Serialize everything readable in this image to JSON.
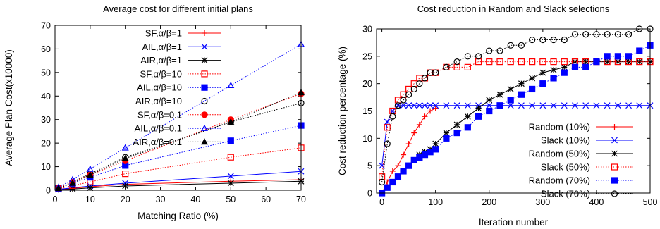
{
  "chart_data": [
    {
      "type": "line",
      "title": "Average cost for different initial plans",
      "xlabel": "Matching Ratio (%)",
      "ylabel": "Average Plan Cost(x10000)",
      "xlim": [
        0,
        70
      ],
      "ylim": [
        0,
        70
      ],
      "xticks": [
        "0",
        "10",
        "20",
        "30",
        "40",
        "50",
        "60",
        "70"
      ],
      "yticks": [
        "0",
        "10",
        "20",
        "30",
        "40",
        "50",
        "60",
        "70"
      ],
      "x": [
        1,
        5,
        10,
        20,
        50,
        70
      ],
      "legend_position": "top-left",
      "grid": false,
      "series": [
        {
          "name": "SF,α/β=1",
          "color": "#ff0000",
          "dash": "solid",
          "marker": "plus",
          "values": [
            0.3,
            0.8,
            1.5,
            2.5,
            3.8,
            4.5
          ]
        },
        {
          "name": "AIL,α/β=1",
          "color": "#0000ff",
          "dash": "solid",
          "marker": "x",
          "values": [
            0.4,
            1.0,
            1.8,
            3.0,
            6.0,
            8.0
          ]
        },
        {
          "name": "AIR,α/β=1",
          "color": "#000000",
          "dash": "solid",
          "marker": "star",
          "values": [
            0.2,
            0.5,
            1.0,
            1.8,
            3.0,
            3.8
          ]
        },
        {
          "name": "SF,α/β=10",
          "color": "#ff0000",
          "dash": "dotted",
          "marker": "square-open",
          "values": [
            0.5,
            2.0,
            3.5,
            7.0,
            14.0,
            18.0
          ]
        },
        {
          "name": "AIL,α/β=10",
          "color": "#0000ff",
          "dash": "dotted",
          "marker": "square-filled",
          "values": [
            0.8,
            3.0,
            5.5,
            10.5,
            21.0,
            27.5
          ]
        },
        {
          "name": "AIR,α/β=10",
          "color": "#000000",
          "dash": "dotted",
          "marker": "circle-open",
          "values": [
            1.0,
            3.5,
            7.0,
            14.0,
            29.0,
            37.0
          ]
        },
        {
          "name": "SF,α/β=0.1",
          "color": "#ff0000",
          "dash": "dotted",
          "marker": "circle-filled",
          "values": [
            1.0,
            3.5,
            6.5,
            12.5,
            30.0,
            41.0
          ]
        },
        {
          "name": "AIL,α/β=0.1",
          "color": "#0000ff",
          "dash": "dotted",
          "marker": "triangle-open",
          "values": [
            1.3,
            4.5,
            9.0,
            18.0,
            44.5,
            62.0
          ]
        },
        {
          "name": "AIR,α/β=0.1",
          "color": "#000000",
          "dash": "dotted",
          "marker": "triangle-filled",
          "values": [
            0.8,
            3.0,
            6.5,
            13.5,
            29.0,
            41.5
          ]
        }
      ]
    },
    {
      "type": "line",
      "title": "Cost reduction in Random and Slack selections",
      "xlabel": "Iteration number",
      "ylabel": "Cost reduction percentage (%)",
      "xlim": [
        -10,
        500
      ],
      "ylim": [
        0,
        30
      ],
      "xticks": [
        "0",
        "100",
        "200",
        "300",
        "400",
        "500"
      ],
      "yticks": [
        "0",
        "5",
        "10",
        "15",
        "20",
        "25",
        "30"
      ],
      "legend_position": "bottom-right",
      "grid": false,
      "series": [
        {
          "name": "Random (10%)",
          "color": "#ff0000",
          "dash": "solid",
          "marker": "plus",
          "x": [
            0,
            10,
            20,
            30,
            40,
            50,
            60,
            70,
            80,
            90,
            100
          ],
          "values": [
            0,
            2,
            4,
            5,
            7,
            9,
            11,
            12.5,
            14,
            15,
            15.5
          ]
        },
        {
          "name": "Slack (10%)",
          "color": "#0000ff",
          "dash": "solid",
          "marker": "x",
          "x": [
            0,
            10,
            20,
            30,
            40,
            50,
            60,
            70,
            80,
            90,
            100,
            120,
            140,
            160,
            180,
            200,
            220,
            240,
            260,
            280,
            300,
            320,
            340,
            360,
            380,
            400,
            420,
            440,
            460,
            480,
            500
          ],
          "values": [
            5,
            13,
            15,
            16,
            16,
            16,
            16,
            16,
            16,
            16,
            16,
            16,
            16,
            16,
            16,
            16,
            16,
            16,
            16,
            16,
            16,
            16,
            16,
            16,
            16,
            16,
            16,
            16,
            16,
            16,
            16
          ]
        },
        {
          "name": "Random (50%)",
          "color": "#000000",
          "dash": "solid",
          "marker": "star",
          "x": [
            0,
            10,
            20,
            30,
            40,
            50,
            60,
            70,
            80,
            90,
            100,
            120,
            140,
            160,
            180,
            200,
            220,
            240,
            260,
            280,
            300,
            320,
            340,
            360,
            380,
            400,
            420,
            440,
            460,
            480,
            500
          ],
          "values": [
            0,
            1,
            2,
            3,
            4,
            5,
            6,
            7,
            7.5,
            8,
            9,
            11,
            12.5,
            14,
            15.5,
            17,
            18,
            19,
            20,
            21,
            22,
            22.5,
            23,
            24,
            24,
            24,
            24,
            24,
            24,
            24,
            24
          ]
        },
        {
          "name": "Slack (50%)",
          "color": "#ff0000",
          "dash": "dotted",
          "marker": "square-open",
          "x": [
            0,
            10,
            20,
            30,
            40,
            50,
            60,
            70,
            80,
            90,
            100,
            120,
            140,
            160,
            180,
            200,
            220,
            240,
            260,
            280,
            300,
            320,
            340,
            360,
            380,
            400,
            420,
            440,
            460,
            480,
            500
          ],
          "values": [
            3,
            12,
            15,
            17,
            18,
            19,
            20,
            21,
            21,
            22,
            22,
            23,
            23,
            23,
            24,
            24,
            24,
            24,
            24,
            24,
            24,
            24,
            24,
            24,
            24,
            24,
            24,
            24,
            24,
            24,
            24
          ]
        },
        {
          "name": "Random (70%)",
          "color": "#0000ff",
          "dash": "dotted",
          "marker": "square-filled",
          "x": [
            0,
            10,
            20,
            30,
            40,
            50,
            60,
            70,
            80,
            90,
            100,
            120,
            140,
            160,
            180,
            200,
            220,
            240,
            260,
            280,
            300,
            320,
            340,
            360,
            380,
            400,
            420,
            440,
            460,
            480,
            500
          ],
          "values": [
            0,
            1,
            2,
            3,
            4,
            5,
            6,
            6.5,
            7,
            7.5,
            8,
            10,
            11,
            12,
            14,
            15,
            16,
            17,
            18,
            19,
            20,
            21,
            22,
            23,
            23,
            24,
            25,
            25,
            25,
            26,
            27
          ]
        },
        {
          "name": "Slack (70%)",
          "color": "#000000",
          "dash": "dotted",
          "marker": "circle-open",
          "x": [
            0,
            10,
            20,
            30,
            40,
            50,
            60,
            70,
            80,
            90,
            100,
            120,
            140,
            160,
            180,
            200,
            220,
            240,
            260,
            280,
            300,
            320,
            340,
            360,
            380,
            400,
            420,
            440,
            460,
            480,
            500
          ],
          "values": [
            2,
            9,
            14,
            16,
            17,
            18,
            19,
            20,
            21,
            22,
            22,
            23,
            24,
            25,
            25,
            26,
            26,
            27,
            27,
            28,
            28,
            28,
            28,
            29,
            29,
            29,
            29,
            29,
            29,
            30,
            30
          ]
        }
      ]
    }
  ]
}
